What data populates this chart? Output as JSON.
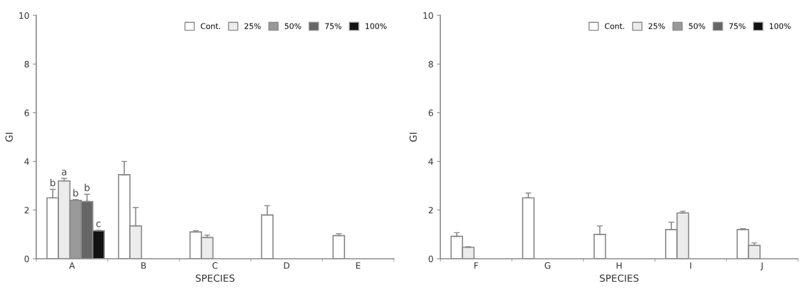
{
  "chart_data": [
    {
      "type": "bar",
      "xlabel": "SPECIES",
      "ylabel": "GI",
      "categories": [
        "A",
        "B",
        "C",
        "D",
        "E"
      ],
      "ylim": [
        0,
        10
      ],
      "yticks": [
        0,
        2,
        4,
        6,
        8,
        10
      ],
      "grid": false,
      "legend": "top right",
      "series": [
        {
          "name": "Cont.",
          "color": "#ffffff",
          "values": [
            2.5,
            3.45,
            1.1,
            1.8,
            0.95
          ],
          "errors": [
            [
              2.5,
              2.85
            ],
            [
              3.45,
              4.0
            ],
            [
              1.1,
              1.15
            ],
            [
              1.8,
              2.18
            ],
            [
              0.95,
              1.03
            ]
          ],
          "value_labels": [
            "b",
            null,
            null,
            null,
            null
          ]
        },
        {
          "name": "25%",
          "color": "#ececec",
          "values": [
            3.2,
            1.35,
            0.87,
            null,
            null
          ],
          "errors": [
            [
              3.2,
              3.3
            ],
            [
              1.35,
              2.1
            ],
            [
              0.87,
              0.97
            ],
            null,
            null
          ],
          "value_labels": [
            "a",
            null,
            null,
            null,
            null
          ]
        },
        {
          "name": "50%",
          "color": "#999999",
          "values": [
            2.4,
            null,
            null,
            null,
            null
          ],
          "errors": [
            [
              2.4,
              2.43
            ],
            null,
            null,
            null,
            null
          ],
          "value_labels": [
            "b",
            null,
            null,
            null,
            null
          ]
        },
        {
          "name": "75%",
          "color": "#666666",
          "values": [
            2.35,
            null,
            null,
            null,
            null
          ],
          "errors": [
            [
              2.35,
              2.65
            ],
            null,
            null,
            null,
            null
          ],
          "value_labels": [
            "b",
            null,
            null,
            null,
            null
          ]
        },
        {
          "name": "100%",
          "color": "#111111",
          "values": [
            1.15,
            null,
            null,
            null,
            null
          ],
          "errors": [
            [
              1.15,
              1.17
            ],
            null,
            null,
            null,
            null
          ],
          "value_labels": [
            "c",
            null,
            null,
            null,
            null
          ]
        }
      ]
    },
    {
      "type": "bar",
      "xlabel": "SPECIES",
      "ylabel": "GI",
      "categories": [
        "F",
        "G",
        "H",
        "I",
        "J"
      ],
      "ylim": [
        0,
        10
      ],
      "yticks": [
        0,
        2,
        4,
        6,
        8,
        10
      ],
      "grid": false,
      "legend": "top right",
      "series": [
        {
          "name": "Cont.",
          "color": "#ffffff",
          "values": [
            0.92,
            2.5,
            1.0,
            1.2,
            1.2
          ],
          "errors": [
            [
              0.92,
              1.07
            ],
            [
              2.5,
              2.7
            ],
            [
              1.0,
              1.35
            ],
            [
              1.2,
              1.5
            ],
            [
              1.2,
              1.23
            ]
          ]
        },
        {
          "name": "25%",
          "color": "#ececec",
          "values": [
            0.47,
            null,
            null,
            1.88,
            0.55
          ],
          "errors": [
            [
              0.47,
              0.49
            ],
            null,
            null,
            [
              1.88,
              1.95
            ],
            [
              0.55,
              0.65
            ]
          ]
        },
        {
          "name": "50%",
          "color": "#999999",
          "values": [
            null,
            null,
            null,
            null,
            null
          ]
        },
        {
          "name": "75%",
          "color": "#666666",
          "values": [
            null,
            null,
            null,
            null,
            null
          ]
        },
        {
          "name": "100%",
          "color": "#111111",
          "values": [
            null,
            null,
            null,
            null,
            null
          ]
        }
      ]
    }
  ]
}
